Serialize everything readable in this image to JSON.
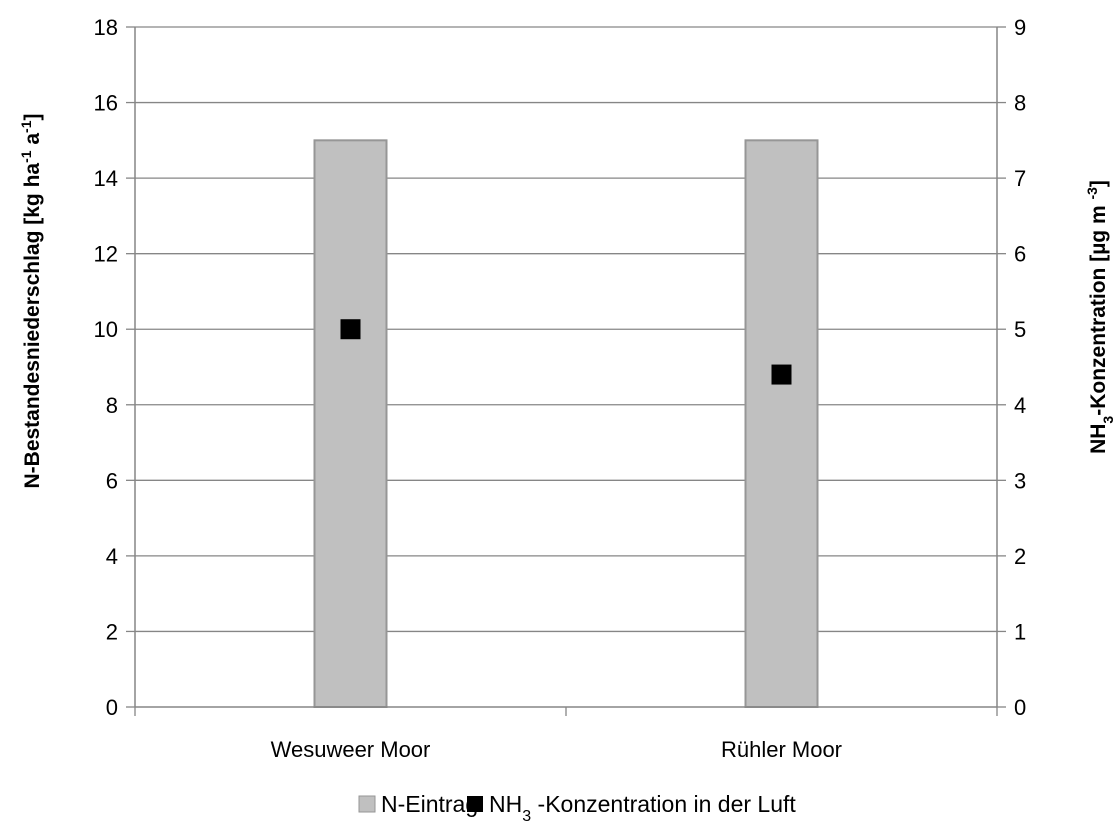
{
  "chart_data": {
    "type": "bar",
    "categories": [
      "Wesuweer Moor",
      "Rühler Moor"
    ],
    "series": [
      {
        "name": "N-Eintrag",
        "chart_type": "bar",
        "axis": "left",
        "values": [
          15,
          15
        ],
        "color": "#c0c0c0",
        "stroke": "#969696"
      },
      {
        "name": "NH3-Konzentration in der Luft",
        "chart_type": "scatter",
        "axis": "right",
        "values": [
          5.0,
          4.4
        ],
        "color": "#000000",
        "marker": "square"
      }
    ],
    "y_left": {
      "label_main": "N-Bestandesniederschlag [kg ha",
      "label_sup1": "-1",
      "label_mid": " a",
      "label_sup2": "-1",
      "label_end": "]",
      "ylim": [
        0,
        18
      ],
      "ticks": [
        "0",
        "2",
        "4",
        "6",
        "8",
        "10",
        "12",
        "14",
        "16",
        "18"
      ]
    },
    "y_right": {
      "label_a": "NH",
      "label_sub": "3",
      "label_b": "-Konzentration [µg m ",
      "label_sup": "-3",
      "label_c": "]",
      "ylim": [
        0,
        9
      ],
      "ticks": [
        "0",
        "1",
        "2",
        "3",
        "4",
        "5",
        "6",
        "7",
        "8",
        "9"
      ]
    },
    "grid": true,
    "legend": {
      "position": "bottom",
      "items": [
        {
          "label": "N-Eintrag",
          "color": "#c0c0c0"
        },
        {
          "label_a": "NH",
          "label_sub": "3",
          "label_b": " -Konzentration in der Luft",
          "color": "#000000"
        }
      ]
    }
  }
}
